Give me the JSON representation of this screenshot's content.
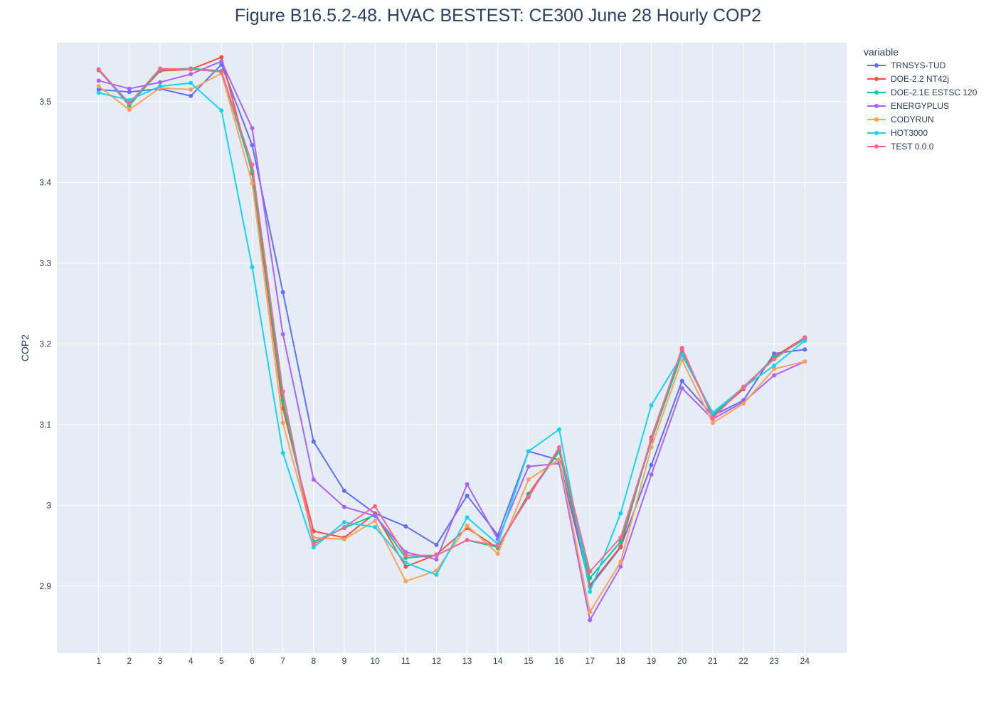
{
  "chart_data": {
    "type": "line",
    "title": "Figure B16.5.2-48. HVAC BESTEST: CE300 June 28 Hourly COP2",
    "xlabel": "",
    "ylabel": "COP2",
    "legend_title": "variable",
    "legend_position": "right",
    "ylim": [
      2.817,
      3.573
    ],
    "yticks": [
      2.9,
      3.0,
      3.1,
      3.2,
      3.3,
      3.4,
      3.5
    ],
    "ytick_labels": [
      "2.9",
      "3",
      "3.1",
      "3.2",
      "3.3",
      "3.4",
      "3.5"
    ],
    "x": [
      1,
      2,
      3,
      4,
      5,
      6,
      7,
      8,
      9,
      10,
      11,
      12,
      13,
      14,
      15,
      16,
      17,
      18,
      19,
      20,
      21,
      22,
      23,
      24
    ],
    "x_labels": [
      "1",
      "2",
      "3",
      "4",
      "5",
      "6",
      "7",
      "8",
      "9",
      "10",
      "11",
      "12",
      "13",
      "14",
      "15",
      "16",
      "17",
      "18",
      "19",
      "20",
      "21",
      "22",
      "23",
      "24"
    ],
    "series": [
      {
        "name": "TRNSYS-TUD",
        "color": "#636efa",
        "values": [
          3.515,
          3.512,
          3.516,
          3.507,
          3.546,
          3.446,
          3.264,
          3.079,
          3.018,
          2.99,
          2.974,
          2.951,
          3.012,
          2.963,
          3.067,
          3.056,
          2.899,
          2.948,
          3.05,
          3.154,
          3.111,
          3.13,
          3.188,
          3.193
        ]
      },
      {
        "name": "DOE-2.2 NT42j",
        "color": "#ef553b",
        "values": [
          3.539,
          3.497,
          3.538,
          3.54,
          3.555,
          3.411,
          3.12,
          2.968,
          2.96,
          2.99,
          2.924,
          2.939,
          2.972,
          2.947,
          3.014,
          3.068,
          2.901,
          2.949,
          3.084,
          3.193,
          3.111,
          3.144,
          3.184,
          3.208
        ]
      },
      {
        "name": "DOE-2.1E ESTSC 120",
        "color": "#00cc96",
        "values": [
          3.54,
          3.495,
          3.54,
          3.541,
          3.538,
          3.414,
          3.13,
          2.955,
          2.972,
          2.988,
          2.935,
          2.938,
          2.957,
          2.948,
          3.012,
          3.067,
          2.91,
          2.955,
          3.08,
          3.188,
          3.112,
          3.146,
          3.183,
          3.206
        ]
      },
      {
        "name": "ENERGYPLUS",
        "color": "#ab63fa",
        "values": [
          3.526,
          3.516,
          3.524,
          3.534,
          3.55,
          3.467,
          3.212,
          3.032,
          2.998,
          2.987,
          2.942,
          2.933,
          3.026,
          2.958,
          3.048,
          3.052,
          2.858,
          2.924,
          3.038,
          3.145,
          3.107,
          3.128,
          3.161,
          3.178
        ]
      },
      {
        "name": "CODYRUN",
        "color": "#ffa15a",
        "values": [
          3.519,
          3.49,
          3.517,
          3.515,
          3.535,
          3.399,
          3.102,
          2.96,
          2.958,
          2.981,
          2.906,
          2.919,
          2.975,
          2.94,
          3.032,
          3.057,
          2.868,
          2.93,
          3.072,
          3.18,
          3.102,
          3.126,
          3.169,
          3.178
        ]
      },
      {
        "name": "HOT3000",
        "color": "#19d3f3",
        "values": [
          3.511,
          3.502,
          3.519,
          3.523,
          3.489,
          3.295,
          3.065,
          2.948,
          2.979,
          2.973,
          2.929,
          2.914,
          2.985,
          2.952,
          3.067,
          3.094,
          2.893,
          2.99,
          3.124,
          3.186,
          3.115,
          3.146,
          3.173,
          3.204
        ]
      },
      {
        "name": "TEST 0.0.0",
        "color": "#ff6692",
        "values": [
          3.54,
          3.498,
          3.541,
          3.54,
          3.537,
          3.422,
          3.141,
          2.952,
          2.973,
          2.999,
          2.938,
          2.938,
          2.957,
          2.95,
          3.01,
          3.072,
          2.918,
          2.96,
          3.082,
          3.195,
          3.108,
          3.147,
          3.181,
          3.208
        ]
      }
    ]
  }
}
